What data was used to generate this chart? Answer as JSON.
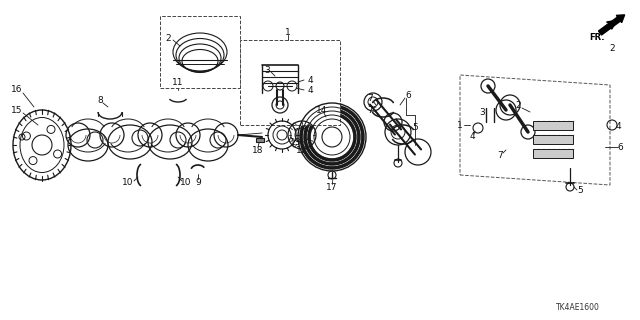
{
  "bg_color": "#ffffff",
  "diagram_code": "TK4AE1600",
  "line_color": "#1a1a1a",
  "label_color": "#111111",
  "font_size": 6.5
}
